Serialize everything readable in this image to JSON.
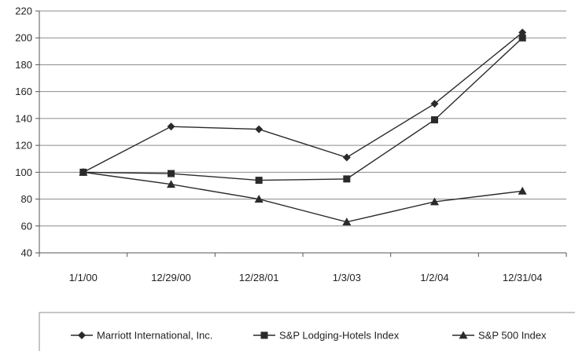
{
  "chart_data": {
    "type": "line",
    "categories": [
      "1/1/00",
      "12/29/00",
      "12/28/01",
      "1/3/03",
      "1/2/04",
      "12/31/04"
    ],
    "ylim": [
      40,
      220
    ],
    "yticks": [
      40,
      60,
      80,
      100,
      120,
      140,
      160,
      180,
      200,
      220
    ],
    "grid": "horizontal",
    "legend_position": "bottom",
    "series": [
      {
        "name": "Marriott International, Inc.",
        "marker": "diamond",
        "values": [
          100,
          134,
          132,
          111,
          151,
          204
        ]
      },
      {
        "name": "S&P Lodging-Hotels Index",
        "marker": "square",
        "values": [
          100,
          99,
          94,
          95,
          139,
          200
        ]
      },
      {
        "name": "S&P 500 Index",
        "marker": "triangle",
        "values": [
          100,
          91,
          80,
          63,
          78,
          86
        ]
      }
    ],
    "colors": {
      "line": "#2a2a2a",
      "grid": "#8c8c8c",
      "axis": "#555555",
      "text": "#222222"
    }
  }
}
